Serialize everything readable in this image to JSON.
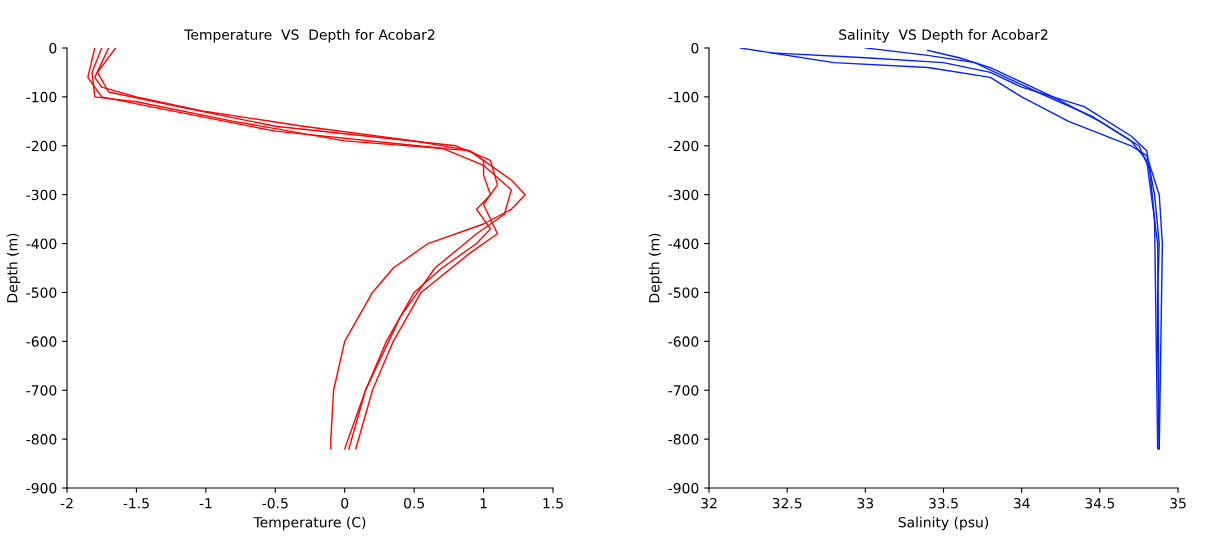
{
  "chart_data": [
    {
      "type": "line",
      "title": "Temperature  VS  Depth for Acobar2",
      "xlabel": "Temperature (C)",
      "ylabel": "Depth (m)",
      "xlim": [
        -2,
        1.5
      ],
      "xticks": [
        -2,
        -1.5,
        -1,
        -0.5,
        0,
        0.5,
        1,
        1.5
      ],
      "ylim": [
        -900,
        0
      ],
      "yticks": [
        -900,
        -800,
        -700,
        -600,
        -500,
        -400,
        -300,
        -200,
        -100,
        0
      ],
      "grid": false,
      "marker": "none",
      "line_style": "solid",
      "series": [
        {
          "color": "#ff0000",
          "x": [
            -1.7,
            -1.75,
            -1.8,
            -1.75,
            -1.5,
            -1.0,
            -0.3,
            0.5,
            0.9,
            1.0,
            1.0,
            1.05,
            0.95,
            1.05,
            0.95,
            0.7,
            0.5,
            0.3,
            0.15,
            0.05,
            0.03
          ],
          "values": [
            0,
            -30,
            -60,
            -80,
            -100,
            -130,
            -160,
            -190,
            -210,
            -230,
            -260,
            -300,
            -330,
            -370,
            -400,
            -450,
            -500,
            -600,
            -700,
            -800,
            -820
          ]
        },
        {
          "color": "#ff0000",
          "x": [
            -1.75,
            -1.82,
            -1.8,
            -1.5,
            -0.8,
            0,
            0.9,
            1.05,
            1.2,
            1.3,
            1.2,
            1.0,
            0.6,
            0.35,
            0.2,
            0.0,
            -0.08,
            -0.1,
            -0.1
          ],
          "values": [
            0,
            -50,
            -100,
            -110,
            -150,
            -190,
            -210,
            -240,
            -270,
            -300,
            -330,
            -360,
            -400,
            -450,
            -500,
            -600,
            -700,
            -800,
            -820
          ]
        },
        {
          "color": "#ff0000",
          "x": [
            -1.65,
            -1.78,
            -1.7,
            -1.2,
            -0.5,
            0.8,
            1.05,
            1.1,
            1.0,
            1.1,
            0.9,
            0.55,
            0.35,
            0.2,
            0.08
          ],
          "values": [
            0,
            -50,
            -90,
            -120,
            -160,
            -200,
            -230,
            -280,
            -320,
            -380,
            -420,
            -500,
            -600,
            -700,
            -820
          ]
        },
        {
          "color": "#ff0000",
          "x": [
            -1.8,
            -1.85,
            -1.75,
            -1.4,
            -0.5,
            0.7,
            1.0,
            1.2,
            1.15,
            0.95,
            0.65,
            0.4,
            0.15,
            0.0
          ],
          "values": [
            0,
            -60,
            -100,
            -120,
            -170,
            -205,
            -240,
            -290,
            -340,
            -380,
            -450,
            -550,
            -700,
            -820
          ]
        }
      ]
    },
    {
      "type": "line",
      "title": "Salinity  VS Depth for Acobar2",
      "xlabel": "Salinity (psu)",
      "ylabel": "Depth (m)",
      "xlim": [
        32,
        35
      ],
      "xticks": [
        32,
        32.5,
        33,
        33.5,
        34,
        34.5,
        35
      ],
      "ylim": [
        -900,
        0
      ],
      "yticks": [
        -900,
        -800,
        -700,
        -600,
        -500,
        -400,
        -300,
        -200,
        -100,
        0
      ],
      "grid": false,
      "marker": "none",
      "line_style": "solid",
      "series": [
        {
          "color": "#0022ff",
          "x": [
            32.2,
            32.4,
            33.0,
            33.5,
            33.8,
            34.0,
            34.4,
            34.7,
            34.8,
            34.82,
            34.85,
            34.88,
            34.87,
            34.87,
            34.88
          ],
          "values": [
            0,
            -10,
            -20,
            -30,
            -50,
            -80,
            -120,
            -180,
            -210,
            -250,
            -300,
            -400,
            -500,
            -600,
            -820
          ]
        },
        {
          "color": "#0022ff",
          "x": [
            32.4,
            32.8,
            33.4,
            33.8,
            34.0,
            34.3,
            34.7,
            34.8,
            34.88,
            34.9,
            34.88
          ],
          "values": [
            -10,
            -30,
            -40,
            -60,
            -100,
            -150,
            -200,
            -220,
            -300,
            -400,
            -820
          ]
        },
        {
          "color": "#0022ff",
          "x": [
            33.4,
            33.6,
            33.8,
            34.0,
            34.2,
            34.5,
            34.75,
            34.82,
            34.85,
            34.87
          ],
          "values": [
            -5,
            -20,
            -40,
            -70,
            -100,
            -150,
            -200,
            -250,
            -350,
            -820
          ]
        },
        {
          "color": "#0022ff",
          "x": [
            33.0,
            33.4,
            33.7,
            33.9,
            34.1,
            34.45,
            34.7,
            34.8,
            34.87,
            34.88
          ],
          "values": [
            0,
            -15,
            -30,
            -60,
            -90,
            -140,
            -190,
            -230,
            -400,
            -820
          ]
        }
      ]
    }
  ]
}
